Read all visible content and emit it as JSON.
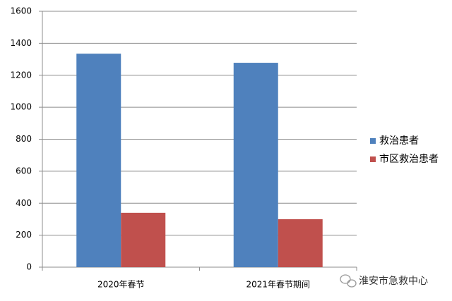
{
  "chart_data": {
    "type": "bar",
    "categories": [
      "2020年春节",
      "2021年春节期间"
    ],
    "series": [
      {
        "name": "救治患者",
        "color": "#4f81bd",
        "values": [
          1335,
          1278
        ]
      },
      {
        "name": "市区救治患者",
        "color": "#c0504d",
        "values": [
          340,
          300
        ]
      }
    ],
    "ylim": [
      0,
      1600
    ],
    "yticks": [
      0,
      200,
      400,
      600,
      800,
      1000,
      1200,
      1400,
      1600
    ],
    "grid": true,
    "legend": "right",
    "watermark": "淮安市急救中心"
  }
}
